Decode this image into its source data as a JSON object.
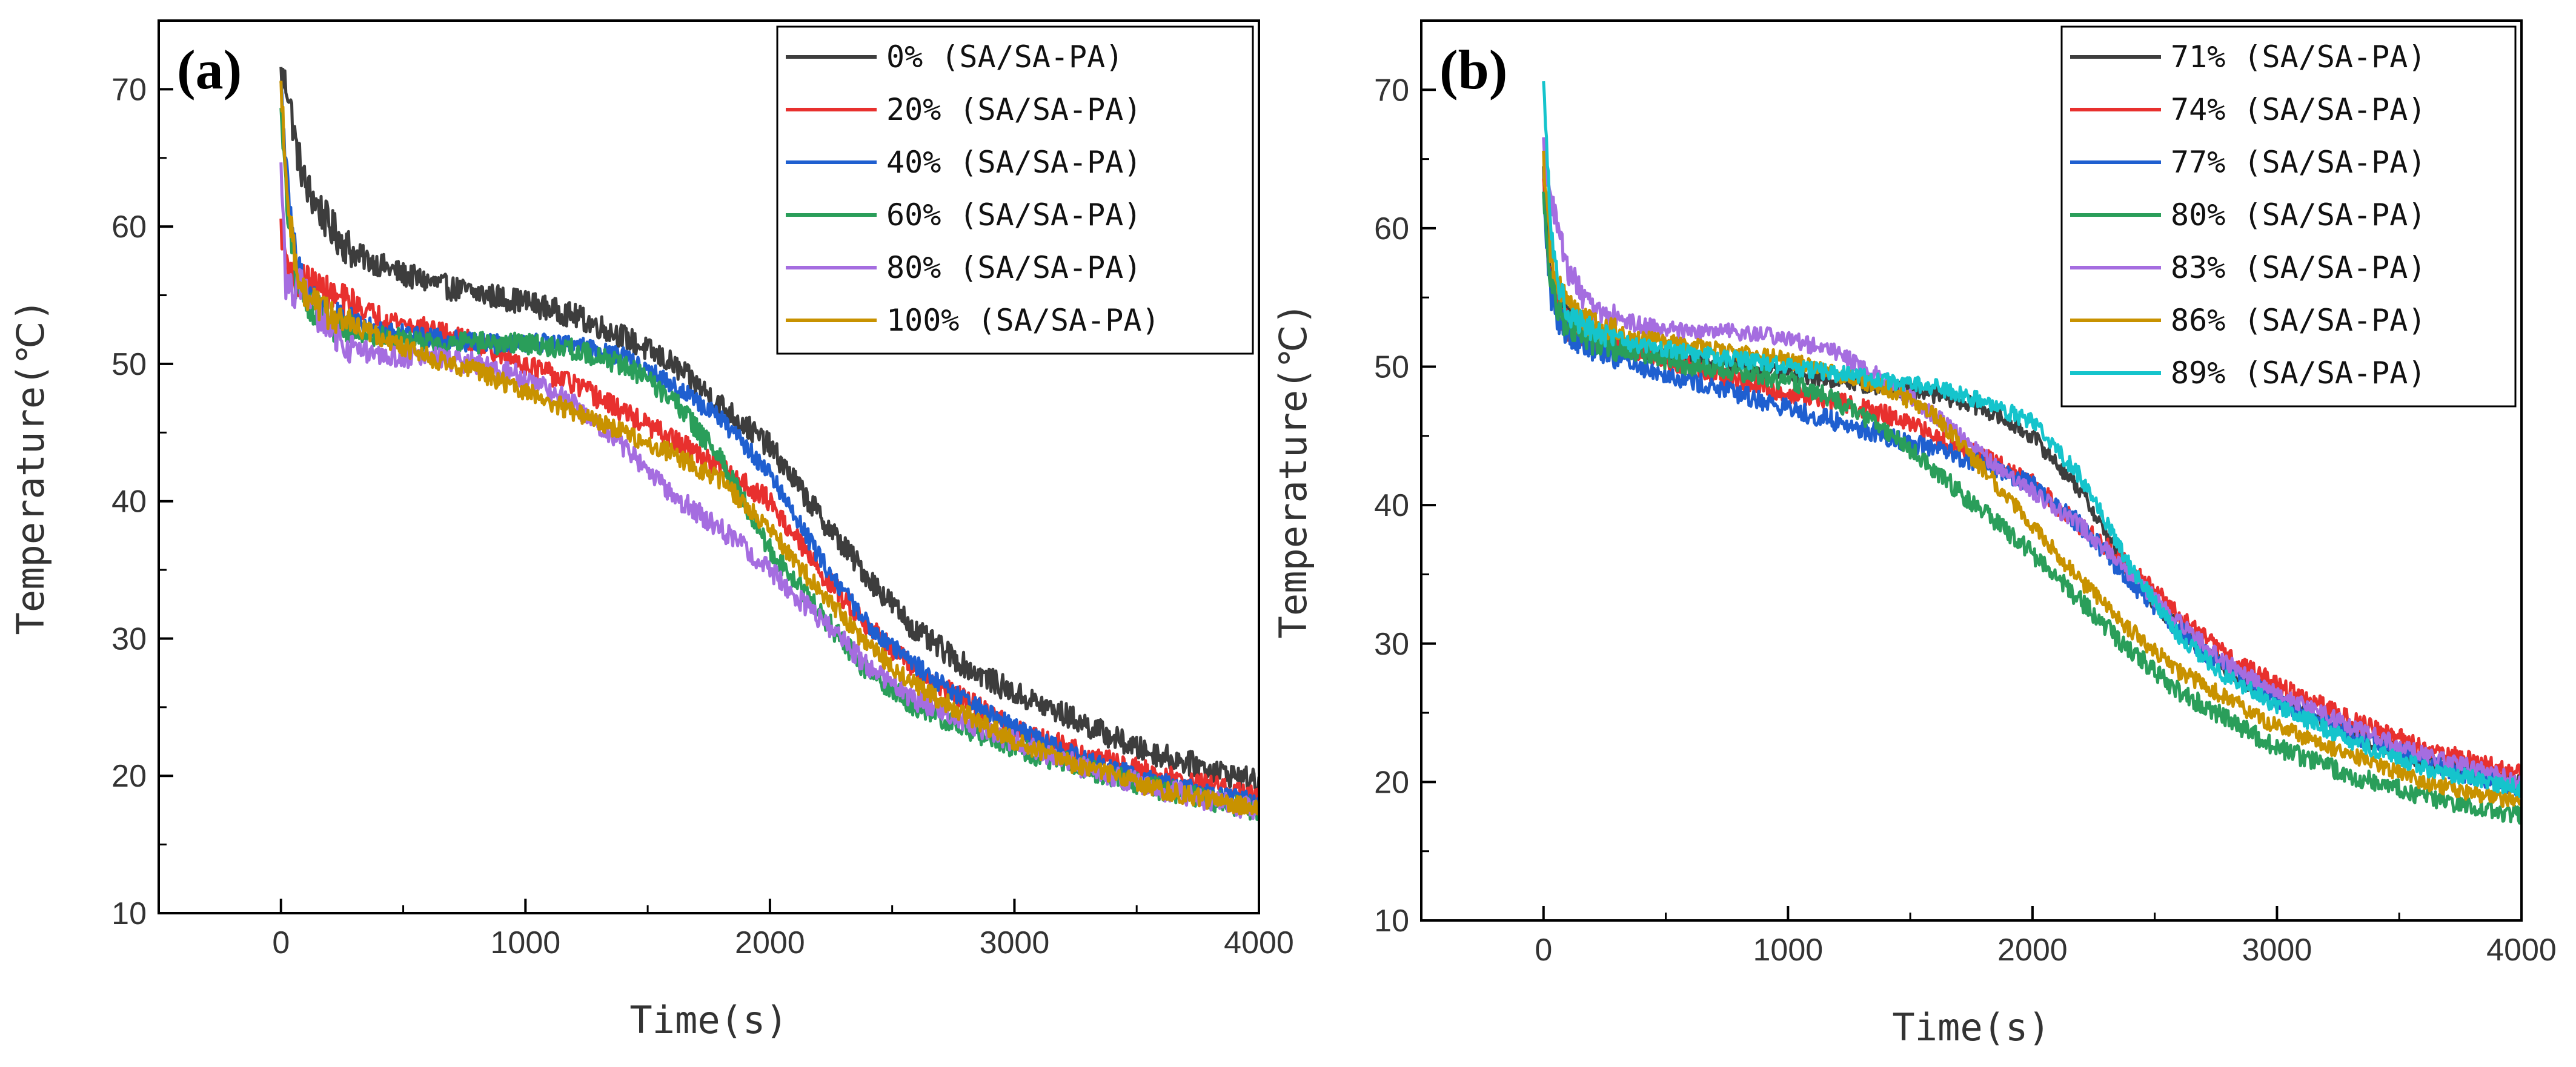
{
  "colors": {
    "black": "#3d3d3d",
    "red": "#e8302e",
    "blue": "#1f5fd0",
    "green": "#2a9e5a",
    "purple": "#a56de0",
    "orange": "#c89200",
    "cyan": "#15c4cc"
  },
  "chart_data": [
    {
      "type": "line",
      "panel_label": "(a)",
      "title": "",
      "xlabel": "Time(s)",
      "ylabel": "Temperature(℃)",
      "xlim": [
        -500,
        4000
      ],
      "ylim": [
        10,
        75
      ],
      "xticks": [
        0,
        1000,
        2000,
        3000,
        4000
      ],
      "yticks": [
        10,
        20,
        30,
        40,
        50,
        60,
        70
      ],
      "legend_position": "top-right",
      "series": [
        {
          "name": "0% (SA/SA-PA)",
          "color": "#3d3d3d",
          "noise": 0.9,
          "x": [
            0,
            30,
            60,
            100,
            200,
            300,
            500,
            700,
            1000,
            1200,
            1400,
            1600,
            1800,
            2000,
            2200,
            2400,
            2600,
            2800,
            3000,
            3200,
            3500,
            3800,
            4000
          ],
          "y": [
            71,
            70,
            66,
            63,
            60,
            58,
            56.5,
            55.5,
            54.5,
            53.5,
            52,
            50,
            47,
            44,
            39,
            34.5,
            30.5,
            28,
            26,
            24.5,
            22,
            20.5,
            19.5
          ]
        },
        {
          "name": "20% (SA/SA-PA)",
          "color": "#e8302e",
          "noise": 0.8,
          "x": [
            0,
            30,
            60,
            100,
            200,
            400,
            600,
            800,
            1000,
            1200,
            1400,
            1600,
            1800,
            2000,
            2200,
            2400,
            2600,
            2800,
            3000,
            3300,
            3600,
            4000
          ],
          "y": [
            60,
            57,
            56,
            56,
            55,
            53.5,
            52.5,
            51.5,
            50,
            48.5,
            46.5,
            44.5,
            42.5,
            40,
            35,
            31,
            27.5,
            25.5,
            23.5,
            21.5,
            20,
            18.5
          ]
        },
        {
          "name": "40% (SA/SA-PA)",
          "color": "#1f5fd0",
          "noise": 0.7,
          "x": [
            0,
            30,
            60,
            100,
            200,
            400,
            600,
            800,
            1000,
            1200,
            1400,
            1600,
            1800,
            2000,
            2200,
            2400,
            2600,
            2800,
            3000,
            3300,
            3600,
            4000
          ],
          "y": [
            70,
            62,
            58,
            55,
            53.5,
            52.5,
            52,
            51.5,
            51.5,
            51.5,
            50.5,
            48.5,
            46,
            42,
            36,
            31,
            28,
            25.5,
            23.5,
            21,
            19.5,
            18
          ]
        },
        {
          "name": "60% (SA/SA-PA)",
          "color": "#2a9e5a",
          "noise": 0.8,
          "x": [
            0,
            30,
            60,
            100,
            200,
            400,
            600,
            800,
            1000,
            1200,
            1400,
            1600,
            1800,
            2000,
            2200,
            2400,
            2600,
            2800,
            3000,
            3300,
            3600,
            4000
          ],
          "y": [
            68,
            60,
            56,
            54.5,
            53,
            52,
            51.5,
            51.5,
            51.5,
            51,
            50,
            47.5,
            43,
            36.5,
            32,
            27.5,
            25,
            23.5,
            22,
            20.5,
            19,
            17.5
          ]
        },
        {
          "name": "80% (SA/SA-PA)",
          "color": "#a56de0",
          "noise": 0.8,
          "x": [
            0,
            20,
            50,
            80,
            150,
            250,
            400,
            600,
            800,
            1000,
            1200,
            1400,
            1600,
            1800,
            2000,
            2200,
            2400,
            2600,
            2800,
            3000,
            3300,
            3600,
            4000
          ],
          "y": [
            64,
            56,
            55,
            56,
            53.5,
            51.5,
            50.5,
            50.5,
            50,
            49,
            47,
            44,
            40.5,
            38,
            35,
            31.5,
            28,
            25.5,
            24,
            22.5,
            20.5,
            19,
            17.5
          ]
        },
        {
          "name": "100% (SA/SA-PA)",
          "color": "#c89200",
          "noise": 0.7,
          "x": [
            0,
            30,
            60,
            100,
            200,
            400,
            600,
            800,
            1000,
            1200,
            1400,
            1600,
            1800,
            2000,
            2200,
            2400,
            2600,
            2800,
            3000,
            3300,
            3600,
            4000
          ],
          "y": [
            70,
            62,
            57,
            55,
            53.5,
            52,
            50.5,
            49.5,
            48,
            46.5,
            45,
            43.5,
            41.5,
            38,
            33.5,
            29.5,
            26.5,
            24.5,
            22.5,
            20.5,
            19,
            17.5
          ]
        }
      ]
    },
    {
      "type": "line",
      "panel_label": "(b)",
      "title": "",
      "xlabel": "Time(s)",
      "ylabel": "Temperature(℃)",
      "xlim": [
        -500,
        4000
      ],
      "ylim": [
        10,
        75
      ],
      "xticks": [
        0,
        1000,
        2000,
        3000,
        4000
      ],
      "yticks": [
        10,
        20,
        30,
        40,
        50,
        60,
        70
      ],
      "legend_position": "top-right",
      "series": [
        {
          "name": "71% (SA/SA-PA)",
          "color": "#3d3d3d",
          "noise": 0.6,
          "x": [
            0,
            30,
            60,
            100,
            200,
            400,
            600,
            800,
            1000,
            1200,
            1400,
            1600,
            1800,
            2000,
            2200,
            2400,
            2600,
            2800,
            3000,
            3300,
            3600,
            4000
          ],
          "y": [
            64,
            57,
            55,
            54,
            52.5,
            51,
            50.5,
            50,
            49.5,
            49,
            48.5,
            48,
            47,
            45,
            41,
            35,
            31,
            28,
            26,
            23.5,
            21.5,
            20
          ]
        },
        {
          "name": "74% (SA/SA-PA)",
          "color": "#e8302e",
          "noise": 0.7,
          "x": [
            0,
            30,
            60,
            100,
            200,
            400,
            600,
            800,
            1000,
            1200,
            1400,
            1600,
            1800,
            2000,
            2200,
            2400,
            2600,
            2800,
            3000,
            3300,
            3600,
            4000
          ],
          "y": [
            63,
            56,
            54,
            53,
            52,
            51,
            50,
            49,
            48,
            47.5,
            46.5,
            45,
            43.5,
            41.5,
            38.5,
            35.5,
            32,
            29,
            27,
            24.5,
            22.5,
            20.5
          ]
        },
        {
          "name": "77% (SA/SA-PA)",
          "color": "#1f5fd0",
          "noise": 0.7,
          "x": [
            0,
            30,
            60,
            100,
            200,
            400,
            600,
            800,
            1000,
            1200,
            1400,
            1600,
            1800,
            2000,
            2200,
            2400,
            2600,
            2800,
            3000,
            3300,
            3600,
            4000
          ],
          "y": [
            62,
            55,
            53.5,
            52.5,
            51.5,
            50,
            49,
            48,
            47,
            46,
            45,
            44,
            43,
            41.5,
            38.5,
            34.5,
            31,
            28,
            26,
            23.5,
            21.5,
            19.5
          ]
        },
        {
          "name": "80% (SA/SA-PA)",
          "color": "#2a9e5a",
          "noise": 0.7,
          "x": [
            0,
            30,
            60,
            100,
            200,
            400,
            600,
            800,
            1000,
            1200,
            1400,
            1600,
            1800,
            2000,
            2200,
            2400,
            2600,
            2800,
            3000,
            3300,
            3600,
            4000
          ],
          "y": [
            62,
            56,
            54,
            53,
            52,
            51,
            50,
            49.5,
            49,
            47.5,
            45.5,
            42.5,
            39.5,
            36.5,
            33,
            29.5,
            26.5,
            24.5,
            22.5,
            20.5,
            19,
            17.5
          ]
        },
        {
          "name": "83% (SA/SA-PA)",
          "color": "#a56de0",
          "noise": 0.6,
          "x": [
            0,
            30,
            60,
            100,
            200,
            400,
            600,
            800,
            1000,
            1200,
            1400,
            1600,
            1800,
            2000,
            2200,
            2400,
            2600,
            2800,
            3000,
            3300,
            3600,
            4000
          ],
          "y": [
            66,
            62,
            60,
            57,
            54,
            53,
            52.5,
            52.5,
            52,
            51,
            49,
            46.5,
            43.5,
            41,
            38.5,
            35,
            31.5,
            28.5,
            26.5,
            24,
            22,
            20
          ]
        },
        {
          "name": "86% (SA/SA-PA)",
          "color": "#c89200",
          "noise": 0.6,
          "x": [
            0,
            30,
            60,
            100,
            200,
            400,
            600,
            800,
            1000,
            1200,
            1400,
            1600,
            1800,
            2000,
            2200,
            2400,
            2600,
            2800,
            3000,
            3300,
            3600,
            4000
          ],
          "y": [
            65,
            58,
            56,
            54.5,
            53,
            52,
            51.5,
            51,
            50.5,
            49.5,
            48.5,
            46.5,
            42.5,
            38.5,
            34.5,
            31,
            28,
            26,
            24,
            22,
            20,
            18.5
          ]
        },
        {
          "name": "89% (SA/SA-PA)",
          "color": "#15c4cc",
          "noise": 0.6,
          "x": [
            0,
            30,
            60,
            100,
            200,
            400,
            600,
            800,
            1000,
            1200,
            1400,
            1600,
            1800,
            2000,
            2200,
            2400,
            2600,
            2800,
            3000,
            3300,
            3600,
            4000
          ],
          "y": [
            70,
            60,
            56,
            54,
            52.5,
            51.5,
            51,
            50.5,
            50,
            49.5,
            49,
            48.5,
            47.5,
            46,
            42,
            35.5,
            30.5,
            27.5,
            25.5,
            23,
            21,
            19.5
          ]
        }
      ]
    }
  ]
}
